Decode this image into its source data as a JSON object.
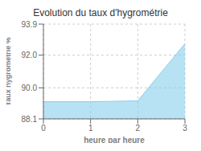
{
  "chart_data": {
    "type": "area",
    "title": "Evolution du taux d'hygrométrie",
    "xlabel": "heure par heure",
    "ylabel": "Taux hygrométrie %",
    "x": [
      0,
      1,
      2,
      3
    ],
    "values": [
      89.15,
      89.15,
      89.2,
      92.7
    ],
    "xlim": [
      0,
      3
    ],
    "xticks": [
      0,
      1,
      2,
      3
    ],
    "ylim": [
      88.1,
      93.9
    ],
    "yticks": [
      88.1,
      {
        "value": 90,
        "label": "90.0"
      },
      {
        "value": 92,
        "label": "92.0"
      },
      93.9
    ],
    "color": "#87ceeb",
    "grid": true
  }
}
